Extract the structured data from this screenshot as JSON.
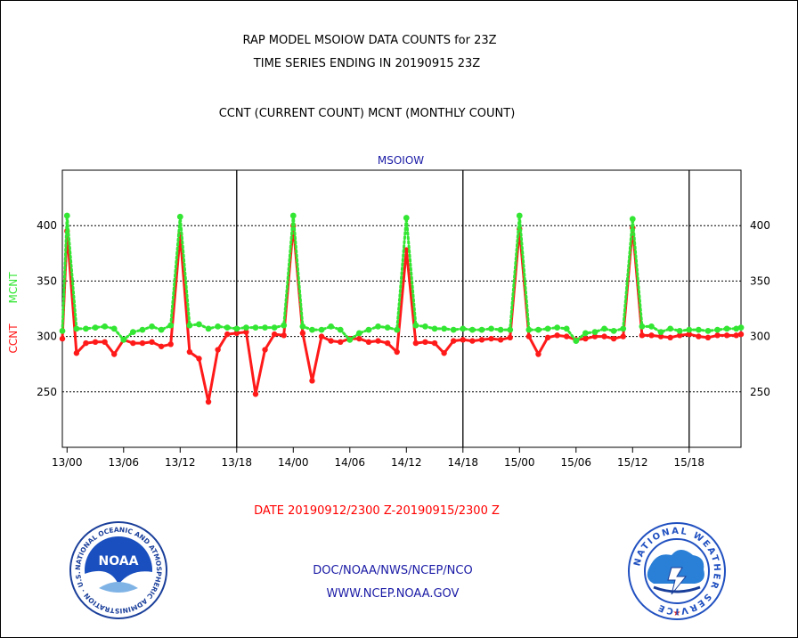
{
  "titles": {
    "line1": "RAP MODEL MSOIOW DATA COUNTS for 23Z",
    "line2": "TIME SERIES ENDING IN 20190915 23Z",
    "line3": "CCNT (CURRENT COUNT) MCNT (MONTHLY COUNT)"
  },
  "footer": {
    "date_range": "DATE 20190912/2300 Z-20190915/2300 Z",
    "org": "DOC/NOAA/NWS/NCEP/NCO",
    "url": "WWW.NCEP.NOAA.GOV"
  },
  "colors": {
    "ccnt": "#ff1a1a",
    "mcnt": "#33e633",
    "title": "#000000",
    "footer_red": "#ff0000",
    "footer_blue": "#1a1aa6"
  },
  "logos": {
    "left": "noaa-logo",
    "right": "national-weather-service-logo",
    "left_text": "NOAA",
    "left_ring": "NATIONAL OCEANIC AND ATMOSPHERIC ADMINISTRATION · U.S. DEPARTMENT OF COMMERCE",
    "right_ring": "NATIONAL WEATHER SERVICE"
  },
  "chart_data": {
    "type": "line",
    "title": "MSOIOW",
    "ylabel_left": "CCNT",
    "ylabel_right": "MCNT",
    "ylim": [
      200,
      450
    ],
    "yticks": [
      250,
      300,
      350,
      400
    ],
    "x_tick_labels": [
      "13/00",
      "13/06",
      "13/12",
      "13/18",
      "14/00",
      "14/06",
      "14/12",
      "14/18",
      "15/00",
      "15/06",
      "15/12",
      "15/18"
    ],
    "x_tick_hours": [
      0,
      6,
      12,
      18,
      24,
      30,
      36,
      42,
      48,
      54,
      60,
      66
    ],
    "day_separators_hours": [
      18,
      42,
      66
    ],
    "x_range_hours": [
      -0.5,
      71.5
    ],
    "grid": "horizontal-dotted",
    "series": [
      {
        "name": "CCNT",
        "color": "#ff1a1a",
        "x": [
          -0.5,
          0.0,
          1.0,
          2.0,
          3.0,
          4.0,
          5.0,
          6.0,
          7.0,
          8.0,
          9.0,
          10.0,
          11.0,
          12.0,
          13.0,
          14.0,
          15.0,
          16.0,
          17.0,
          18.0,
          19.0,
          20.0,
          21.0,
          22.0,
          23.0,
          24.0,
          25.0,
          26.0,
          27.0,
          28.0,
          29.0,
          30.0,
          31.0,
          32.0,
          33.0,
          34.0,
          35.0,
          36.0,
          37.0,
          38.0,
          39.0,
          40.0,
          41.0,
          42.0,
          43.0,
          44.0,
          45.0,
          46.0,
          47.0,
          48.0,
          49.0,
          50.0,
          51.0,
          52.0,
          53.0,
          54.0,
          55.0,
          56.0,
          57.0,
          58.0,
          59.0,
          60.0,
          61.0,
          62.0,
          63.0,
          64.0,
          65.0,
          66.0,
          67.0,
          68.0,
          69.0,
          70.0,
          71.0,
          71.5
        ],
        "values": [
          298,
          395,
          285,
          294,
          295,
          295,
          284,
          297,
          294,
          294,
          295,
          291,
          293,
          392,
          286,
          280,
          241,
          288,
          302,
          303,
          304,
          248,
          288,
          302,
          301,
          400,
          303,
          260,
          300,
          296,
          295,
          298,
          298,
          295,
          296,
          294,
          286,
          378,
          294,
          295,
          294,
          285,
          296,
          297,
          296,
          297,
          298,
          297,
          299,
          397,
          300,
          284,
          299,
          301,
          300,
          297,
          298,
          300,
          300,
          298,
          300,
          398,
          301,
          301,
          300,
          299,
          301,
          302,
          300,
          299,
          301,
          301,
          301,
          302
        ]
      },
      {
        "name": "MCNT",
        "color": "#33e633",
        "x": [
          -0.5,
          0.0,
          1.0,
          2.0,
          3.0,
          4.0,
          5.0,
          6.0,
          7.0,
          8.0,
          9.0,
          10.0,
          11.0,
          12.0,
          13.0,
          14.0,
          15.0,
          16.0,
          17.0,
          18.0,
          19.0,
          20.0,
          21.0,
          22.0,
          23.0,
          24.0,
          25.0,
          26.0,
          27.0,
          28.0,
          29.0,
          30.0,
          31.0,
          32.0,
          33.0,
          34.0,
          35.0,
          36.0,
          37.0,
          38.0,
          39.0,
          40.0,
          41.0,
          42.0,
          43.0,
          44.0,
          45.0,
          46.0,
          47.0,
          48.0,
          49.0,
          50.0,
          51.0,
          52.0,
          53.0,
          54.0,
          55.0,
          56.0,
          57.0,
          58.0,
          59.0,
          60.0,
          61.0,
          62.0,
          63.0,
          64.0,
          65.0,
          66.0,
          67.0,
          68.0,
          69.0,
          70.0,
          71.0,
          71.5
        ],
        "values": [
          305,
          409,
          307,
          307,
          308,
          309,
          307,
          297,
          304,
          306,
          309,
          306,
          310,
          408,
          310,
          311,
          307,
          309,
          308,
          307,
          308,
          308,
          308,
          308,
          310,
          409,
          309,
          306,
          306,
          309,
          306,
          297,
          303,
          306,
          309,
          308,
          306,
          407,
          310,
          309,
          307,
          307,
          306,
          307,
          306,
          306,
          307,
          306,
          306,
          409,
          306,
          306,
          307,
          308,
          307,
          296,
          303,
          304,
          307,
          305,
          307,
          406,
          309,
          309,
          304,
          307,
          305,
          306,
          306,
          305,
          306,
          307,
          307,
          308
        ]
      }
    ]
  }
}
